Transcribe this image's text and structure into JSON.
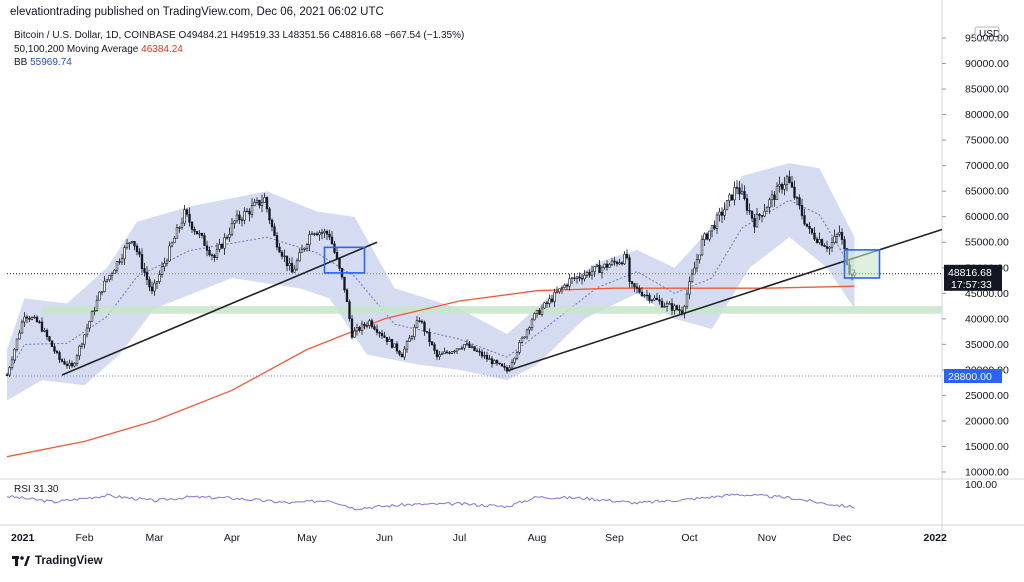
{
  "header": {
    "publisher_line": "elevationtrading published on TradingView.com, Dec 06, 2021 06:02 UTC"
  },
  "legend": {
    "symbol": "Bitcoin / U.S. Dollar, 1D, COINBASE",
    "ohlc": "O49484.21 H49519.33 L48351.56 C48816.68 −667.54 (−1.35%)",
    "ma_name": "50,100,200 Moving Average",
    "ma_value": "46384.24",
    "bb_name": "BB",
    "bb_value": "55969.74"
  },
  "rsi": {
    "label": "RSI",
    "value": "31.30",
    "axis_label": "100.00"
  },
  "footer": {
    "brand": "TradingView"
  },
  "colors": {
    "candle": "#131722",
    "ma200": "#ef5a3a",
    "bb_fill": "#b9c4ea",
    "bb_basis": "#6b74c8",
    "rsi_line": "#7e74d6",
    "support_zone": "#c8e6c9",
    "trendline": "#222222",
    "box": "#2962ff",
    "price_tag": "#131722",
    "level_tag": "#2962ff"
  },
  "chart_data": {
    "type": "candlestick",
    "symbol": "BTCUSD",
    "price_scale": {
      "currency": "USD",
      "min": 10000,
      "max": 95000,
      "ticks": [
        10000,
        15000,
        20000,
        25000,
        30000,
        35000,
        40000,
        45000,
        50000,
        55000,
        60000,
        65000,
        70000,
        75000,
        80000,
        85000,
        90000,
        95000
      ],
      "tick_labels": [
        "10000.00",
        "15000.00",
        "20000.00",
        "25000.00",
        "30000.00",
        "35000.00",
        "40000.00",
        "45000.00",
        "50000.00",
        "55000.00",
        "60000.00",
        "65000.00",
        "70000.00",
        "75000.00",
        "80000.00",
        "85000.00",
        "90000.00",
        "95000.00"
      ]
    },
    "time_axis": {
      "start": "2021-01-01",
      "end": "2022-01-10",
      "labels": [
        {
          "date": "2021-01-01",
          "text": "2021"
        },
        {
          "date": "2021-02-01",
          "text": "Feb"
        },
        {
          "date": "2021-03-01",
          "text": "Mar"
        },
        {
          "date": "2021-04-01",
          "text": "Apr"
        },
        {
          "date": "2021-05-01",
          "text": "May"
        },
        {
          "date": "2021-06-01",
          "text": "Jun"
        },
        {
          "date": "2021-07-01",
          "text": "Jul"
        },
        {
          "date": "2021-08-01",
          "text": "Aug"
        },
        {
          "date": "2021-09-01",
          "text": "Sep"
        },
        {
          "date": "2021-10-01",
          "text": "Oct"
        },
        {
          "date": "2021-11-01",
          "text": "Nov"
        },
        {
          "date": "2021-12-01",
          "text": "Dec"
        },
        {
          "date": "2022-01-01",
          "text": "2022"
        }
      ]
    },
    "close_path": [
      [
        "2021-01-01",
        29000
      ],
      [
        "2021-01-08",
        41000
      ],
      [
        "2021-01-14",
        39000
      ],
      [
        "2021-01-22",
        32000
      ],
      [
        "2021-01-27",
        30500
      ],
      [
        "2021-02-08",
        46000
      ],
      [
        "2021-02-20",
        56000
      ],
      [
        "2021-02-28",
        45000
      ],
      [
        "2021-03-13",
        60500
      ],
      [
        "2021-03-25",
        52000
      ],
      [
        "2021-04-02",
        59000
      ],
      [
        "2021-04-14",
        63500
      ],
      [
        "2021-04-18",
        56000
      ],
      [
        "2021-04-25",
        49000
      ],
      [
        "2021-05-03",
        57500
      ],
      [
        "2021-05-10",
        56500
      ],
      [
        "2021-05-16",
        46000
      ],
      [
        "2021-05-19",
        37000
      ],
      [
        "2021-05-26",
        39500
      ],
      [
        "2021-06-08",
        33000
      ],
      [
        "2021-06-15",
        40000
      ],
      [
        "2021-06-22",
        32500
      ],
      [
        "2021-07-03",
        35000
      ],
      [
        "2021-07-20",
        29800
      ],
      [
        "2021-07-30",
        40000
      ],
      [
        "2021-08-14",
        47500
      ],
      [
        "2021-08-24",
        49500
      ],
      [
        "2021-09-06",
        52000
      ],
      [
        "2021-09-07",
        46500
      ],
      [
        "2021-09-20",
        43000
      ],
      [
        "2021-09-28",
        41500
      ],
      [
        "2021-10-06",
        55000
      ],
      [
        "2021-10-15",
        61500
      ],
      [
        "2021-10-20",
        66000
      ],
      [
        "2021-10-27",
        59000
      ],
      [
        "2021-11-09",
        67500
      ],
      [
        "2021-11-18",
        57000
      ],
      [
        "2021-11-26",
        54000
      ],
      [
        "2021-11-30",
        57000
      ],
      [
        "2021-12-04",
        49500
      ],
      [
        "2021-12-06",
        48816.68
      ]
    ],
    "sma_200": [
      [
        "2021-01-01",
        13000
      ],
      [
        "2021-02-01",
        16000
      ],
      [
        "2021-03-01",
        20000
      ],
      [
        "2021-04-01",
        26000
      ],
      [
        "2021-05-01",
        34000
      ],
      [
        "2021-06-01",
        40000
      ],
      [
        "2021-07-01",
        43500
      ],
      [
        "2021-08-01",
        45500
      ],
      [
        "2021-09-01",
        46000
      ],
      [
        "2021-10-01",
        46000
      ],
      [
        "2021-11-01",
        46000
      ],
      [
        "2021-12-06",
        46384.24
      ]
    ],
    "bollinger_upper": [
      [
        "2021-01-01",
        34000
      ],
      [
        "2021-01-08",
        44000
      ],
      [
        "2021-01-25",
        43000
      ],
      [
        "2021-02-10",
        50000
      ],
      [
        "2021-02-22",
        59000
      ],
      [
        "2021-03-15",
        62000
      ],
      [
        "2021-04-15",
        65000
      ],
      [
        "2021-05-05",
        61000
      ],
      [
        "2021-05-20",
        60000
      ],
      [
        "2021-06-05",
        46000
      ],
      [
        "2021-07-01",
        42000
      ],
      [
        "2021-07-20",
        37000
      ],
      [
        "2021-08-05",
        44000
      ],
      [
        "2021-08-25",
        51000
      ],
      [
        "2021-09-10",
        53500
      ],
      [
        "2021-09-25",
        50000
      ],
      [
        "2021-10-10",
        58000
      ],
      [
        "2021-10-22",
        68000
      ],
      [
        "2021-11-10",
        70500
      ],
      [
        "2021-11-22",
        69500
      ],
      [
        "2021-12-06",
        55969.74
      ]
    ],
    "bollinger_lower": [
      [
        "2021-01-01",
        24000
      ],
      [
        "2021-01-15",
        28000
      ],
      [
        "2021-02-01",
        27000
      ],
      [
        "2021-02-15",
        33000
      ],
      [
        "2021-03-01",
        42000
      ],
      [
        "2021-04-01",
        48000
      ],
      [
        "2021-04-28",
        46000
      ],
      [
        "2021-05-10",
        44000
      ],
      [
        "2021-05-25",
        33000
      ],
      [
        "2021-06-15",
        31000
      ],
      [
        "2021-07-01",
        30000
      ],
      [
        "2021-07-20",
        28000
      ],
      [
        "2021-08-01",
        31000
      ],
      [
        "2021-08-20",
        40000
      ],
      [
        "2021-09-10",
        45000
      ],
      [
        "2021-09-25",
        40000
      ],
      [
        "2021-10-10",
        38000
      ],
      [
        "2021-10-25",
        50000
      ],
      [
        "2021-11-10",
        56000
      ],
      [
        "2021-11-25",
        50000
      ],
      [
        "2021-12-06",
        42000
      ]
    ],
    "support_zone": {
      "from": 41000,
      "to": 42500,
      "start": "2021-01-15",
      "end": "2022-01-10"
    },
    "horizontal_level": {
      "value": 28800,
      "label": "28800.00"
    },
    "last_price": {
      "value": 48816.68,
      "label": "48816.68",
      "countdown": "17:57:33"
    },
    "trendlines": [
      {
        "start": [
          "2021-01-23",
          29000
        ],
        "end": [
          "2021-05-29",
          55000
        ]
      },
      {
        "start": [
          "2021-07-20",
          29800
        ],
        "end": [
          "2022-01-10",
          57500
        ]
      }
    ],
    "boxes": [
      {
        "start": "2021-05-08",
        "end": "2021-05-24",
        "top": 54000,
        "bottom": 49000
      },
      {
        "start": "2021-12-02",
        "end": "2021-12-16",
        "top": 53500,
        "bottom": 48000
      }
    ],
    "rsi": {
      "last": 31.3,
      "scale": [
        0,
        100
      ],
      "path": [
        [
          "2021-01-01",
          60
        ],
        [
          "2021-01-20",
          45
        ],
        [
          "2021-02-10",
          62
        ],
        [
          "2021-03-01",
          48
        ],
        [
          "2021-03-15",
          58
        ],
        [
          "2021-04-01",
          55
        ],
        [
          "2021-04-25",
          42
        ],
        [
          "2021-05-10",
          50
        ],
        [
          "2021-05-20",
          28
        ],
        [
          "2021-06-10",
          38
        ],
        [
          "2021-07-01",
          40
        ],
        [
          "2021-07-20",
          33
        ],
        [
          "2021-08-01",
          58
        ],
        [
          "2021-08-20",
          55
        ],
        [
          "2021-09-10",
          42
        ],
        [
          "2021-10-01",
          52
        ],
        [
          "2021-10-20",
          65
        ],
        [
          "2021-11-10",
          56
        ],
        [
          "2021-11-25",
          40
        ],
        [
          "2021-12-06",
          31.3
        ]
      ]
    }
  }
}
